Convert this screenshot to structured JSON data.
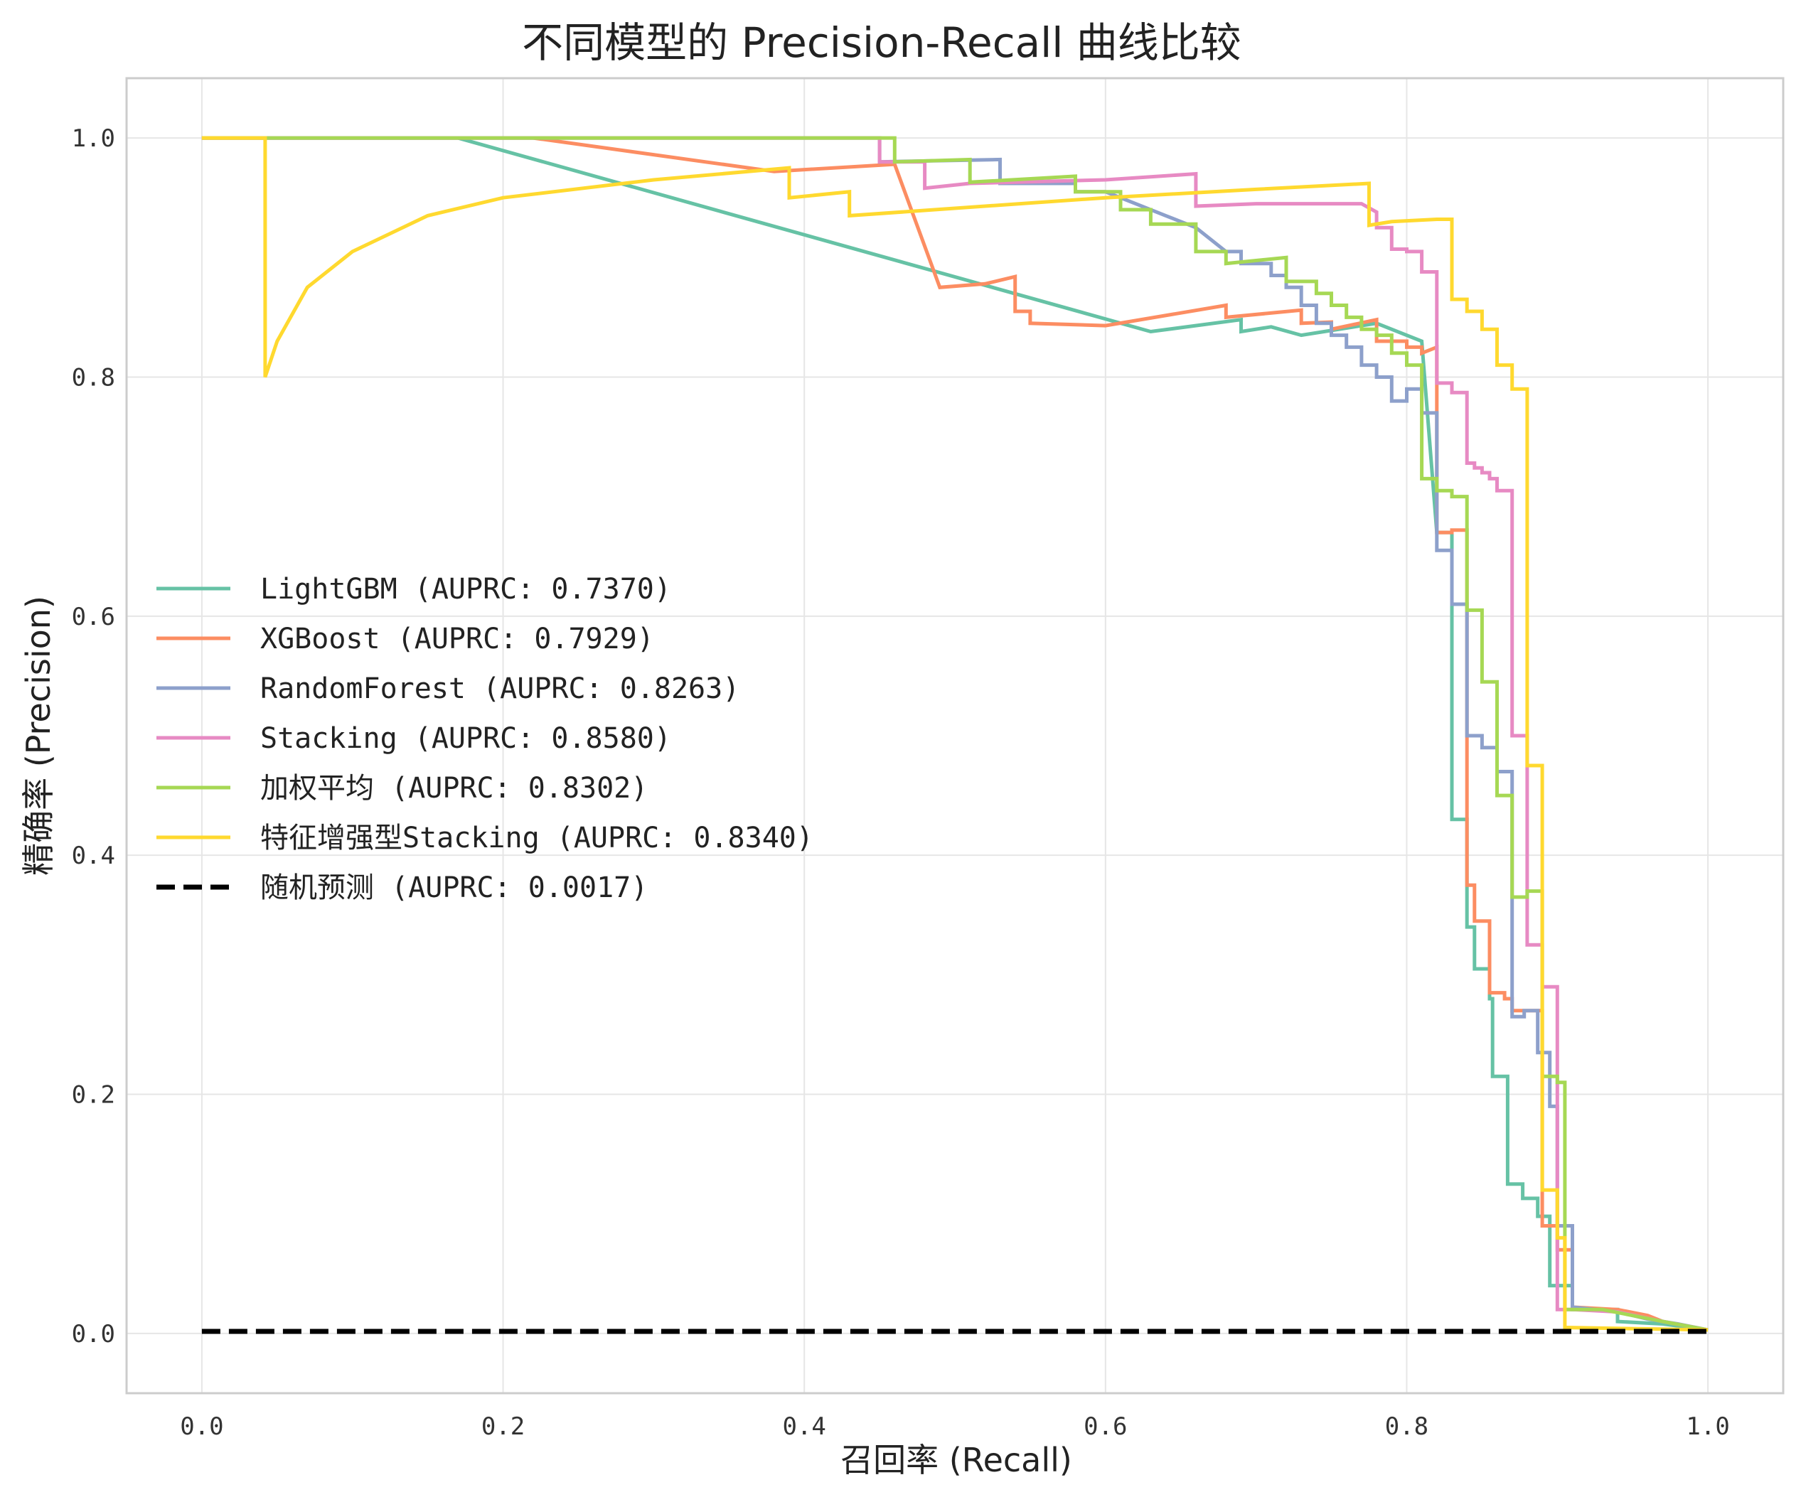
{
  "chart_data": {
    "type": "line",
    "title": "不同模型的 Precision-Recall 曲线比较",
    "xlabel": "召回率 (Recall)",
    "ylabel": "精确率 (Precision)",
    "xlim": [
      -0.05,
      1.05
    ],
    "ylim": [
      -0.05,
      1.05
    ],
    "xticks": [
      "0.0",
      "0.2",
      "0.4",
      "0.6",
      "0.8",
      "1.0"
    ],
    "yticks": [
      "0.0",
      "0.2",
      "0.4",
      "0.6",
      "0.8",
      "1.0"
    ],
    "grid": true,
    "legend_position": "center-left",
    "series": [
      {
        "name": "LightGBM (AUPRC: 0.7370)",
        "color": "#66c2a5",
        "dash": false,
        "points": [
          [
            0,
            1
          ],
          [
            0.17,
            1
          ],
          [
            0.63,
            0.838
          ],
          [
            0.69,
            0.848
          ],
          [
            0.69,
            0.838
          ],
          [
            0.71,
            0.842
          ],
          [
            0.73,
            0.835
          ],
          [
            0.78,
            0.845
          ],
          [
            0.81,
            0.83
          ],
          [
            0.82,
            0.67
          ],
          [
            0.83,
            0.67
          ],
          [
            0.83,
            0.43
          ],
          [
            0.84,
            0.43
          ],
          [
            0.84,
            0.34
          ],
          [
            0.845,
            0.34
          ],
          [
            0.845,
            0.305
          ],
          [
            0.855,
            0.305
          ],
          [
            0.855,
            0.28
          ],
          [
            0.857,
            0.28
          ],
          [
            0.857,
            0.215
          ],
          [
            0.867,
            0.215
          ],
          [
            0.867,
            0.125
          ],
          [
            0.877,
            0.125
          ],
          [
            0.877,
            0.113
          ],
          [
            0.887,
            0.113
          ],
          [
            0.887,
            0.098
          ],
          [
            0.895,
            0.098
          ],
          [
            0.895,
            0.04
          ],
          [
            0.91,
            0.04
          ],
          [
            0.91,
            0.02
          ],
          [
            0.94,
            0.02
          ],
          [
            0.94,
            0.01
          ],
          [
            0.97,
            0.008
          ],
          [
            1.0,
            0.003
          ]
        ]
      },
      {
        "name": "XGBoost (AUPRC: 0.7929)",
        "color": "#fc8d62",
        "dash": false,
        "points": [
          [
            0,
            1
          ],
          [
            0.22,
            1
          ],
          [
            0.38,
            0.972
          ],
          [
            0.46,
            0.978
          ],
          [
            0.49,
            0.875
          ],
          [
            0.52,
            0.878
          ],
          [
            0.54,
            0.884
          ],
          [
            0.54,
            0.855
          ],
          [
            0.55,
            0.855
          ],
          [
            0.55,
            0.845
          ],
          [
            0.6,
            0.843
          ],
          [
            0.68,
            0.86
          ],
          [
            0.68,
            0.85
          ],
          [
            0.73,
            0.856
          ],
          [
            0.73,
            0.845
          ],
          [
            0.75,
            0.846
          ],
          [
            0.75,
            0.84
          ],
          [
            0.78,
            0.848
          ],
          [
            0.78,
            0.83
          ],
          [
            0.8,
            0.83
          ],
          [
            0.8,
            0.825
          ],
          [
            0.81,
            0.825
          ],
          [
            0.81,
            0.82
          ],
          [
            0.82,
            0.825
          ],
          [
            0.82,
            0.67
          ],
          [
            0.83,
            0.67
          ],
          [
            0.83,
            0.672
          ],
          [
            0.84,
            0.672
          ],
          [
            0.84,
            0.375
          ],
          [
            0.845,
            0.375
          ],
          [
            0.845,
            0.345
          ],
          [
            0.855,
            0.345
          ],
          [
            0.855,
            0.285
          ],
          [
            0.865,
            0.285
          ],
          [
            0.865,
            0.28
          ],
          [
            0.87,
            0.28
          ],
          [
            0.87,
            0.27
          ],
          [
            0.89,
            0.27
          ],
          [
            0.89,
            0.09
          ],
          [
            0.9,
            0.09
          ],
          [
            0.9,
            0.07
          ],
          [
            0.91,
            0.07
          ],
          [
            0.91,
            0.022
          ],
          [
            0.94,
            0.02
          ],
          [
            0.96,
            0.015
          ],
          [
            0.97,
            0.01
          ],
          [
            1.0,
            0.003
          ]
        ]
      },
      {
        "name": "RandomForest (AUPRC: 0.8263)",
        "color": "#8da0cb",
        "dash": false,
        "points": [
          [
            0,
            1
          ],
          [
            0.45,
            1
          ],
          [
            0.45,
            0.98
          ],
          [
            0.53,
            0.982
          ],
          [
            0.53,
            0.962
          ],
          [
            0.58,
            0.962
          ],
          [
            0.58,
            0.955
          ],
          [
            0.6,
            0.955
          ],
          [
            0.62,
            0.945
          ],
          [
            0.64,
            0.935
          ],
          [
            0.66,
            0.925
          ],
          [
            0.68,
            0.905
          ],
          [
            0.69,
            0.905
          ],
          [
            0.69,
            0.895
          ],
          [
            0.71,
            0.895
          ],
          [
            0.71,
            0.885
          ],
          [
            0.72,
            0.885
          ],
          [
            0.72,
            0.875
          ],
          [
            0.73,
            0.875
          ],
          [
            0.73,
            0.86
          ],
          [
            0.74,
            0.86
          ],
          [
            0.74,
            0.845
          ],
          [
            0.75,
            0.845
          ],
          [
            0.75,
            0.835
          ],
          [
            0.76,
            0.835
          ],
          [
            0.76,
            0.825
          ],
          [
            0.77,
            0.825
          ],
          [
            0.77,
            0.81
          ],
          [
            0.78,
            0.81
          ],
          [
            0.78,
            0.8
          ],
          [
            0.79,
            0.8
          ],
          [
            0.79,
            0.78
          ],
          [
            0.8,
            0.78
          ],
          [
            0.8,
            0.79
          ],
          [
            0.81,
            0.79
          ],
          [
            0.81,
            0.77
          ],
          [
            0.82,
            0.77
          ],
          [
            0.82,
            0.655
          ],
          [
            0.83,
            0.655
          ],
          [
            0.83,
            0.61
          ],
          [
            0.84,
            0.61
          ],
          [
            0.84,
            0.5
          ],
          [
            0.85,
            0.5
          ],
          [
            0.85,
            0.49
          ],
          [
            0.86,
            0.49
          ],
          [
            0.86,
            0.47
          ],
          [
            0.87,
            0.47
          ],
          [
            0.87,
            0.265
          ],
          [
            0.878,
            0.265
          ],
          [
            0.878,
            0.27
          ],
          [
            0.887,
            0.27
          ],
          [
            0.887,
            0.235
          ],
          [
            0.895,
            0.235
          ],
          [
            0.895,
            0.19
          ],
          [
            0.9,
            0.19
          ],
          [
            0.9,
            0.09
          ],
          [
            0.91,
            0.09
          ],
          [
            0.91,
            0.022
          ],
          [
            0.94,
            0.018
          ],
          [
            0.96,
            0.012
          ],
          [
            0.98,
            0.008
          ],
          [
            1.0,
            0.003
          ]
        ]
      },
      {
        "name": "Stacking (AUPRC: 0.8580)",
        "color": "#e78ac3",
        "dash": false,
        "points": [
          [
            0,
            1
          ],
          [
            0.45,
            1
          ],
          [
            0.45,
            0.98
          ],
          [
            0.48,
            0.98
          ],
          [
            0.48,
            0.958
          ],
          [
            0.51,
            0.962
          ],
          [
            0.6,
            0.965
          ],
          [
            0.66,
            0.97
          ],
          [
            0.66,
            0.943
          ],
          [
            0.7,
            0.945
          ],
          [
            0.77,
            0.945
          ],
          [
            0.78,
            0.938
          ],
          [
            0.78,
            0.925
          ],
          [
            0.79,
            0.925
          ],
          [
            0.79,
            0.907
          ],
          [
            0.8,
            0.907
          ],
          [
            0.8,
            0.905
          ],
          [
            0.81,
            0.905
          ],
          [
            0.81,
            0.888
          ],
          [
            0.82,
            0.888
          ],
          [
            0.82,
            0.795
          ],
          [
            0.83,
            0.795
          ],
          [
            0.83,
            0.787
          ],
          [
            0.84,
            0.787
          ],
          [
            0.84,
            0.728
          ],
          [
            0.845,
            0.728
          ],
          [
            0.845,
            0.724
          ],
          [
            0.85,
            0.724
          ],
          [
            0.85,
            0.72
          ],
          [
            0.855,
            0.72
          ],
          [
            0.855,
            0.715
          ],
          [
            0.86,
            0.715
          ],
          [
            0.86,
            0.705
          ],
          [
            0.87,
            0.705
          ],
          [
            0.87,
            0.5
          ],
          [
            0.88,
            0.5
          ],
          [
            0.88,
            0.325
          ],
          [
            0.89,
            0.325
          ],
          [
            0.89,
            0.29
          ],
          [
            0.9,
            0.29
          ],
          [
            0.9,
            0.02
          ],
          [
            0.91,
            0.02
          ],
          [
            0.94,
            0.018
          ],
          [
            0.97,
            0.01
          ],
          [
            1.0,
            0.003
          ]
        ]
      },
      {
        "name": "加权平均 (AUPRC: 0.8302)",
        "color": "#a6d854",
        "dash": false,
        "points": [
          [
            0,
            1
          ],
          [
            0.46,
            1
          ],
          [
            0.46,
            0.98
          ],
          [
            0.51,
            0.982
          ],
          [
            0.51,
            0.963
          ],
          [
            0.58,
            0.968
          ],
          [
            0.58,
            0.955
          ],
          [
            0.61,
            0.955
          ],
          [
            0.61,
            0.94
          ],
          [
            0.63,
            0.94
          ],
          [
            0.63,
            0.928
          ],
          [
            0.66,
            0.928
          ],
          [
            0.66,
            0.905
          ],
          [
            0.68,
            0.905
          ],
          [
            0.68,
            0.895
          ],
          [
            0.72,
            0.9
          ],
          [
            0.72,
            0.88
          ],
          [
            0.74,
            0.88
          ],
          [
            0.74,
            0.87
          ],
          [
            0.75,
            0.87
          ],
          [
            0.75,
            0.86
          ],
          [
            0.76,
            0.86
          ],
          [
            0.76,
            0.85
          ],
          [
            0.77,
            0.85
          ],
          [
            0.77,
            0.84
          ],
          [
            0.78,
            0.84
          ],
          [
            0.78,
            0.835
          ],
          [
            0.79,
            0.835
          ],
          [
            0.79,
            0.82
          ],
          [
            0.8,
            0.82
          ],
          [
            0.8,
            0.81
          ],
          [
            0.81,
            0.81
          ],
          [
            0.81,
            0.715
          ],
          [
            0.82,
            0.715
          ],
          [
            0.82,
            0.705
          ],
          [
            0.83,
            0.705
          ],
          [
            0.83,
            0.7
          ],
          [
            0.84,
            0.7
          ],
          [
            0.84,
            0.605
          ],
          [
            0.85,
            0.605
          ],
          [
            0.85,
            0.545
          ],
          [
            0.86,
            0.545
          ],
          [
            0.86,
            0.45
          ],
          [
            0.87,
            0.45
          ],
          [
            0.87,
            0.365
          ],
          [
            0.88,
            0.365
          ],
          [
            0.88,
            0.37
          ],
          [
            0.89,
            0.37
          ],
          [
            0.89,
            0.215
          ],
          [
            0.9,
            0.215
          ],
          [
            0.9,
            0.21
          ],
          [
            0.905,
            0.21
          ],
          [
            0.905,
            0.02
          ],
          [
            0.93,
            0.02
          ],
          [
            0.95,
            0.015
          ],
          [
            0.97,
            0.01
          ],
          [
            1.0,
            0.003
          ]
        ]
      },
      {
        "name": "特征增强型Stacking (AUPRC: 0.8340)",
        "color": "#ffd92f",
        "dash": false,
        "points": [
          [
            0,
            1
          ],
          [
            0.042,
            1
          ],
          [
            0.042,
            0.8
          ],
          [
            0.05,
            0.83
          ],
          [
            0.07,
            0.875
          ],
          [
            0.1,
            0.905
          ],
          [
            0.15,
            0.935
          ],
          [
            0.2,
            0.95
          ],
          [
            0.3,
            0.965
          ],
          [
            0.39,
            0.975
          ],
          [
            0.39,
            0.95
          ],
          [
            0.43,
            0.955
          ],
          [
            0.43,
            0.935
          ],
          [
            0.6,
            0.95
          ],
          [
            0.7,
            0.957
          ],
          [
            0.775,
            0.962
          ],
          [
            0.775,
            0.927
          ],
          [
            0.79,
            0.93
          ],
          [
            0.82,
            0.932
          ],
          [
            0.83,
            0.932
          ],
          [
            0.83,
            0.865
          ],
          [
            0.84,
            0.865
          ],
          [
            0.84,
            0.855
          ],
          [
            0.85,
            0.855
          ],
          [
            0.85,
            0.84
          ],
          [
            0.86,
            0.84
          ],
          [
            0.86,
            0.81
          ],
          [
            0.87,
            0.81
          ],
          [
            0.87,
            0.79
          ],
          [
            0.88,
            0.79
          ],
          [
            0.88,
            0.475
          ],
          [
            0.89,
            0.475
          ],
          [
            0.89,
            0.12
          ],
          [
            0.9,
            0.12
          ],
          [
            0.9,
            0.08
          ],
          [
            0.905,
            0.08
          ],
          [
            0.905,
            0.005
          ],
          [
            1.0,
            0.003
          ]
        ]
      },
      {
        "name": "随机预测 (AUPRC: 0.0017)",
        "color": "#000000",
        "dash": true,
        "points": [
          [
            0,
            0.0017
          ],
          [
            1.0,
            0.0017
          ]
        ]
      }
    ]
  }
}
